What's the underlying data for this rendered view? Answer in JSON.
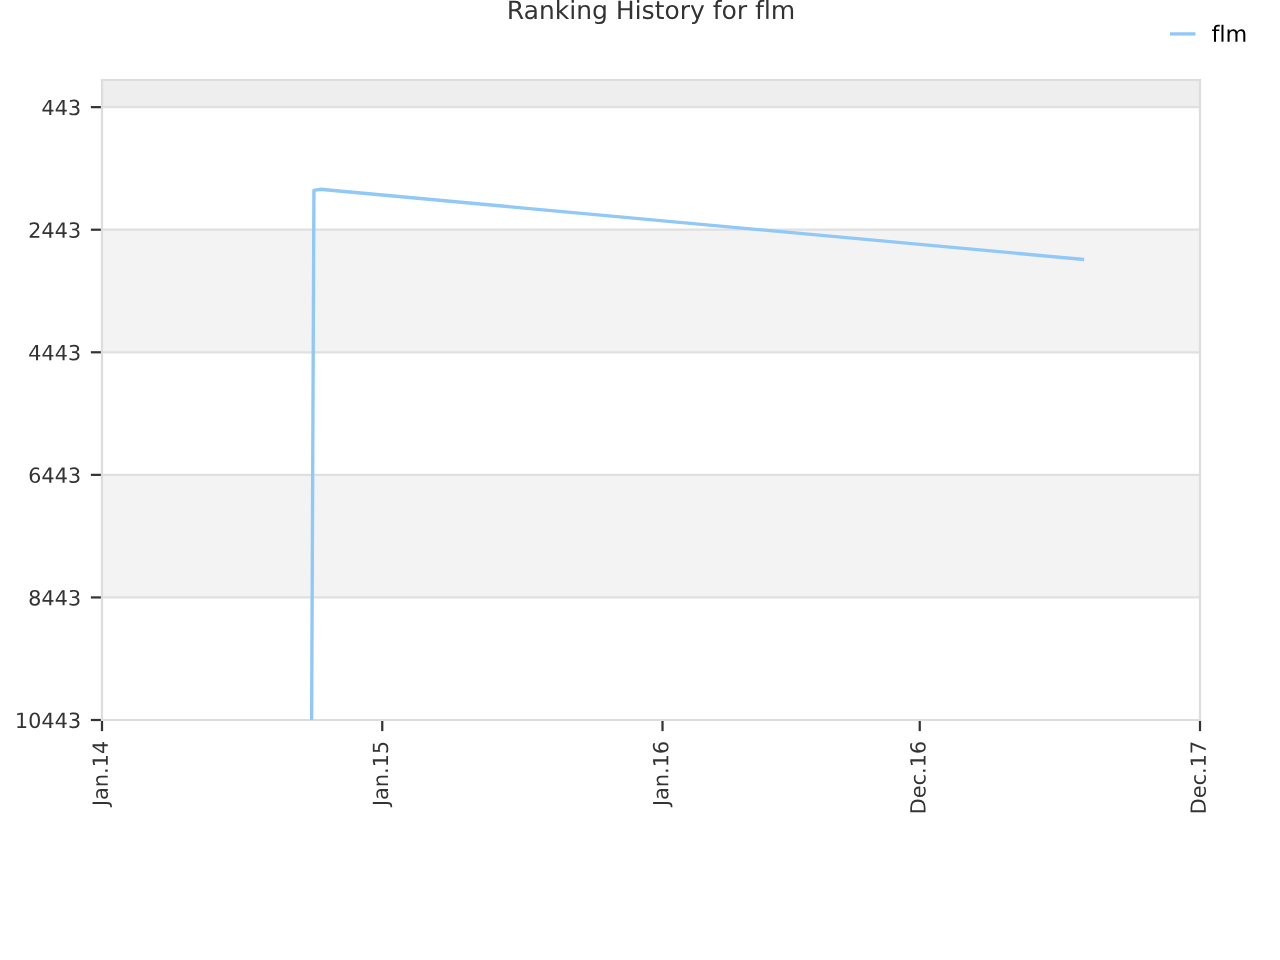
{
  "chart_data": {
    "type": "line",
    "title": "Ranking History for flm",
    "x": [
      "2014-10-01",
      "2014-10-04",
      "2014-10-12",
      "2017-07-01"
    ],
    "series": [
      {
        "name": "flm",
        "color": "#90c8f8",
        "values": [
          10443,
          1800,
          1783,
          2927
        ]
      }
    ],
    "xlim": [
      "2014-01-01",
      "2017-12-01"
    ],
    "xticks": [
      {
        "value": "2014-01-01",
        "label": "Jan.14"
      },
      {
        "value": "2015-01-01",
        "label": "Jan.15"
      },
      {
        "value": "2016-01-01",
        "label": "Jan.16"
      },
      {
        "value": "2016-12-01",
        "label": "Dec.16"
      },
      {
        "value": "2017-12-01",
        "label": "Dec.17"
      }
    ],
    "ylim": [
      10443,
      0
    ],
    "yticks": [
      443,
      2443,
      4443,
      6443,
      8443,
      10443
    ],
    "bands": [
      {
        "axis": "y",
        "from": 0,
        "to": 443,
        "color": "#eeeeee"
      },
      {
        "axis": "y",
        "from": 2443,
        "to": 4443,
        "color": "#f3f3f3"
      },
      {
        "axis": "y",
        "from": 6443,
        "to": 8443,
        "color": "#f3f3f3"
      }
    ],
    "grid": "y",
    "legend": "top right",
    "marker": "none",
    "line_style": "solid"
  }
}
